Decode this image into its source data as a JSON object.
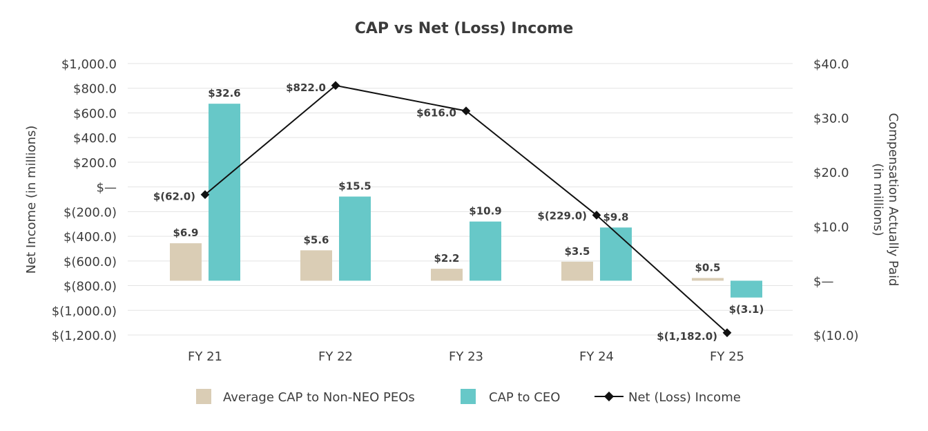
{
  "chart_data": {
    "type": "bar",
    "title": "CAP vs Net (Loss) Income",
    "categories": [
      "FY 21",
      "FY 22",
      "FY 23",
      "FY 24",
      "FY 25"
    ],
    "series": [
      {
        "name": "Average CAP to Non-NEO PEOs",
        "type": "bar",
        "axis": "right",
        "color": "#dacdb5",
        "values": [
          6.9,
          5.6,
          2.2,
          3.5,
          0.5
        ],
        "labels": [
          "$6.9",
          "$5.6",
          "$2.2",
          "$3.5",
          "$0.5"
        ]
      },
      {
        "name": "CAP to CEO",
        "type": "bar",
        "axis": "right",
        "color": "#67c8c8",
        "values": [
          32.6,
          15.5,
          10.9,
          9.8,
          -3.1
        ],
        "labels": [
          "$32.6",
          "$15.5",
          "$10.9",
          "$9.8",
          "$(3.1)"
        ]
      },
      {
        "name": "Net (Loss) Income",
        "type": "line",
        "axis": "left",
        "color": "#111111",
        "values": [
          -62.0,
          822.0,
          616.0,
          -229.0,
          -1182.0
        ],
        "labels": [
          "$(62.0)",
          "$822.0",
          "$616.0",
          "$(229.0)",
          "$(1,182.0)"
        ]
      }
    ],
    "left_axis": {
      "label": "Net Income (in millions)",
      "range": [
        -1200,
        1000
      ],
      "ticks": [
        1000,
        800,
        600,
        400,
        200,
        0,
        -200,
        -400,
        -600,
        -800,
        -1000,
        -1200
      ],
      "tick_labels": [
        "$1,000.0",
        "$800.0",
        "$600.0",
        "$400.0",
        "$200.0",
        "$—",
        "$(200.0)",
        "$(400.0)",
        "$(600.0)",
        "$(800.0)",
        "$(1,000.0)",
        "$(1,200.0)"
      ]
    },
    "right_axis": {
      "label_line1": "Compensation Actually Paid",
      "label_line2": "(in millions)",
      "range": [
        -10,
        40
      ],
      "ticks": [
        40,
        30,
        20,
        10,
        0,
        -10
      ],
      "tick_labels": [
        "$40.0",
        "$30.0",
        "$20.0",
        "$10.0",
        "$—",
        "$(10.0)"
      ]
    },
    "grid": true,
    "legend_position": "bottom"
  }
}
